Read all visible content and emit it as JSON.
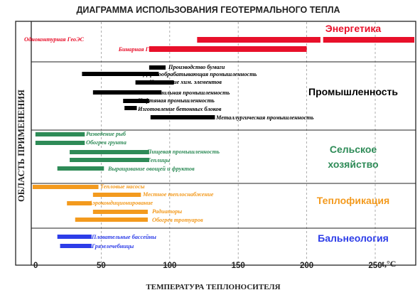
{
  "chart_data": {
    "type": "bar",
    "orientation": "horizontal-range",
    "title": "ДИАГРАММА ИСПОЛЬЗОВАНИЯ ГЕОТЕРМАЛЬНОГО ТЕПЛА",
    "xlabel": "ТЕМПЕРАТУРА ТЕПЛОНОСИТЕЛЯ",
    "ylabel": "ОБЛАСТЬ ПРИМЕНЕНИЯ",
    "x_unit": "t,°C",
    "xlim": [
      0,
      280
    ],
    "x_ticks": [
      "0",
      "50",
      "100",
      "150",
      "200",
      "250"
    ],
    "grid": "vertical dashed at 50, 100, 150, 200, 250",
    "sectors": [
      {
        "name": "Энергетика",
        "color": "#e8102a",
        "bars": [
          {
            "label": "Одноконтурная ГеоЭС",
            "start": 120,
            "end": 210
          },
          {
            "label": "",
            "start": 212,
            "end": 282
          },
          {
            "label": "Бинарная ГеоЭС",
            "start": 85,
            "end": 200
          }
        ]
      },
      {
        "name": "Промышленность",
        "color": "#000000",
        "bars": [
          {
            "label": "Производство бумаги",
            "start": 85,
            "end": 97
          },
          {
            "label": "Деревообрабатывающая промышленность",
            "start": 36,
            "end": 92
          },
          {
            "label": "Извлечение хим. элементов",
            "start": 75,
            "end": 103
          },
          {
            "label": "Текстильная промышленность",
            "start": 44,
            "end": 94
          },
          {
            "label": "Нефтяная промышленность",
            "start": 66,
            "end": 85
          },
          {
            "label": "Изготовление бетонных блоков",
            "start": 67,
            "end": 76
          },
          {
            "label": "Металлургическая промышленность",
            "start": 86,
            "end": 133
          }
        ]
      },
      {
        "name": "Сельское хозяйство",
        "name_lines": [
          "Сельское",
          "хозяйство"
        ],
        "color": "#2e8b57",
        "bars": [
          {
            "label": "Разведение рыб",
            "start": 2,
            "end": 38
          },
          {
            "label": "Обогрев грунта",
            "start": 2,
            "end": 38
          },
          {
            "label": "Пищевая промышленность",
            "start": 27,
            "end": 85
          },
          {
            "label": "Теплицы",
            "start": 27,
            "end": 85
          },
          {
            "label": "Выращивание овощей и фруктов",
            "start": 18,
            "end": 52
          }
        ]
      },
      {
        "name": "Теплофикация",
        "color": "#f39a1e",
        "bars": [
          {
            "label": "Тепловые насосы",
            "start": 0,
            "end": 48
          },
          {
            "label": "Местное теплоснабжение",
            "start": 44,
            "end": 79
          },
          {
            "label": "Аэрокондиционирование",
            "start": 25,
            "end": 43
          },
          {
            "label": "Радиаторы",
            "start": 44,
            "end": 84
          },
          {
            "label": "Обогрев тротуаров",
            "start": 31,
            "end": 84
          }
        ]
      },
      {
        "name": "Бальнеология",
        "color": "#2d3de8",
        "bars": [
          {
            "label": "Плавательные бассейны",
            "start": 18,
            "end": 43
          },
          {
            "label": "Грязелечебницы",
            "start": 20,
            "end": 43
          }
        ]
      }
    ]
  }
}
